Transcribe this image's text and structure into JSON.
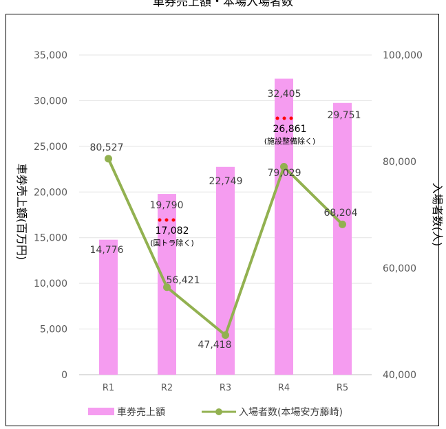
{
  "title": "車券売上額・本場入場者数",
  "chart_data": {
    "type": "bar",
    "categories": [
      "R1",
      "R2",
      "R3",
      "R4",
      "R5"
    ],
    "series": [
      {
        "name": "車券売上額",
        "type": "bar",
        "axis": "left",
        "color": "#f59cf0",
        "values": [
          14776,
          19790,
          22749,
          32405,
          29751
        ]
      },
      {
        "name": "入場者数(本場安方藤崎)",
        "type": "line",
        "axis": "right",
        "color": "#92b150",
        "values": [
          80527,
          56421,
          47418,
          79029,
          68204
        ]
      }
    ],
    "bar_labels": [
      "14,776",
      "19,790",
      "22,749",
      "32,405",
      "29,751"
    ],
    "line_labels": [
      "80,527",
      "56,421",
      "47,418",
      "79,029",
      "68,204"
    ],
    "annotations": [
      {
        "category": "R2",
        "value": "17,082",
        "note": "(国トラ除く)"
      },
      {
        "category": "R4",
        "value": "26,861",
        "note": "(施設整備除く)"
      }
    ],
    "ylabel_left": "車券売上額(百万円)",
    "ylabel_right": "入場者数(人)",
    "ylim_left": [
      0,
      35000
    ],
    "ylim_right": [
      40000,
      100000
    ],
    "yticks_left": [
      "0",
      "5,000",
      "10,000",
      "15,000",
      "20,000",
      "25,000",
      "30,000",
      "35,000"
    ],
    "yticks_right": [
      "40,000",
      "60,000",
      "80,000",
      "100,000"
    ],
    "grid": true,
    "legend_position": "bottom"
  }
}
